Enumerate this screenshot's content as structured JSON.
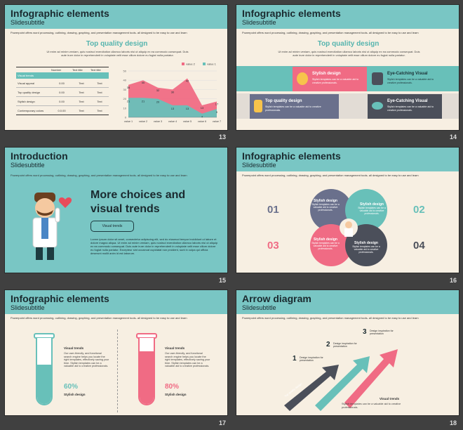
{
  "common": {
    "title": "Infographic elements",
    "subtitle": "Slidesubtitle",
    "desc": "Powerpoint offers word processing, outlining, drawing, graphing, and presentation management tools- all designed to be easy to use and learn"
  },
  "slides": {
    "s13": {
      "num": "13",
      "heading": "Top quality design",
      "body": "Ut enim ad minim veniam, quis nostrud exercitation ullamco laboris nisi ut aliquip ex ea commodo consequat. Duis aute irure dolor in reprehenderit in voluptate velit esse cillum dolore eu fugiat nulla pariatur.",
      "table": {
        "headers": [
          "",
          "Number",
          "Text title",
          "Text title"
        ],
        "rows": [
          [
            "Visual trends",
            "",
            "",
            ""
          ],
          [
            "Visual appeal",
            "0.00",
            "Text",
            "Text"
          ],
          [
            "Top quality design",
            "0.00",
            "Text",
            "Text"
          ],
          [
            "Stylish design",
            "0.00",
            "Text",
            "Text"
          ],
          [
            "Contemporary colors",
            "0.0.00",
            "Text",
            "Text"
          ]
        ]
      }
    },
    "s14": {
      "num": "14",
      "heading": "Top quality design",
      "body": "Ut enim ad minim veniam, quis nostrud exercitation ullamco laboris nisi ut aliquip ex ea commodo consequat. Duis aute irure dolor in reprehenderit in voluptate velit esse cillum dolore eu fugiat nulla pariatur.",
      "cards": [
        {
          "title": "Stylish design",
          "text": "Stylish templates can be a valuable aid to creative professionals."
        },
        {
          "title": "Eye-Catching Visual",
          "text": "Stylish templates can be a valuable aid to creative professionals."
        },
        {
          "title": "Top quality design",
          "text": "Stylish templates can be a valuable aid to creative professionals."
        },
        {
          "title": "Eye-Catching Visual",
          "text": "Stylish templates can be a valuable aid to creative professionals."
        }
      ]
    },
    "s15": {
      "num": "15",
      "title": "Introduction",
      "subtitle": "Slidesubtitle",
      "headline": "More choices and visual trends",
      "button": "Visual trends",
      "body": "Lorem ipsum dolor sit amet, consectetur adipiscing elit, sed do eiusmod tempor incididunt ut labore et dolore magna aliqua. Ut enim ad minim veniam, quis nostrud exercitation ullamco laboris nisi ut aliquip ex ea commodo consequat. Duis aute irure dolor in reprehenderit in voluptate velit esse cillum dolore eu fugiat nulla pariatur. Excepteur sint occaecat cupidatat non proident, sunt in culpa qui officia deserunt mollit anim id est laborum."
    },
    "s16": {
      "num": "16",
      "items": [
        {
          "n": "01",
          "title": "Stylish design",
          "text": "Stylish templates can be a valuable aid to creative professionals."
        },
        {
          "n": "02",
          "title": "Stylish design",
          "text": "Stylish templates can be a valuable aid to creative professionals."
        },
        {
          "n": "03",
          "title": "Stylish design",
          "text": "Stylish templates can be a valuable aid to creative professionals."
        },
        {
          "n": "04",
          "title": "Stylish design",
          "text": "Stylish templates can be a valuable aid to creative professionals."
        }
      ]
    },
    "s17": {
      "num": "17",
      "left": {
        "label": "Visual trends",
        "body": "Our user-friendly, and functional search engine helps you locate the right templates, effectively saving your time. Stylish templates can be a valuable aid to creative professionals.",
        "pct": "60%",
        "pct_value": 0.6,
        "caption": "Stylish design"
      },
      "right": {
        "label": "Visual trends",
        "body": "Our user-friendly, and functional search engine helps you locate the right templates, effectively saving your time. Stylish templates can be a valuable aid to creative professionals.",
        "pct": "80%",
        "pct_value": 0.8,
        "caption": "Stylish design"
      }
    },
    "s18": {
      "num": "18",
      "title": "Arrow diagram",
      "steps": [
        {
          "n": "1",
          "text": "Design inspiration for presentation"
        },
        {
          "n": "2",
          "text": "Design inspiration for presentation"
        },
        {
          "n": "3",
          "text": "Design inspiration for presentation"
        }
      ],
      "arrow_label": "Top quality design",
      "footer_title": "Visual trends",
      "footer_text": "Stylish templates can be a valuable aid to creative professionals."
    }
  },
  "chart_data": {
    "type": "area",
    "categories": [
      "value 1",
      "value 2",
      "value 3",
      "value 4",
      "value 5",
      "value 6",
      "value 7"
    ],
    "series": [
      {
        "name": "value 2",
        "values": [
          35,
          40,
          32,
          30,
          42,
          13,
          17
        ]
      },
      {
        "name": "value 1",
        "values": [
          21,
          21,
          20,
          13,
          13,
          4,
          9
        ]
      }
    ],
    "ylim": [
      0,
      50
    ],
    "yticks": [
      0,
      10,
      20,
      30,
      40,
      50
    ],
    "colors": {
      "value 2": "#f06b84",
      "value 1": "#68c0b9"
    },
    "data_labels": {
      "value 2": [
        "35",
        "40",
        "32",
        "30",
        "42",
        "13",
        "17"
      ],
      "value 1": [
        "21",
        "21",
        "20",
        "13",
        "13",
        "4",
        "9"
      ]
    }
  },
  "colors": {
    "teal": "#68c0b9",
    "pink": "#f06b84",
    "slate": "#6a708c",
    "dark": "#4b4f5a",
    "header": "#79c6c4",
    "bg": "#f7efe2"
  }
}
